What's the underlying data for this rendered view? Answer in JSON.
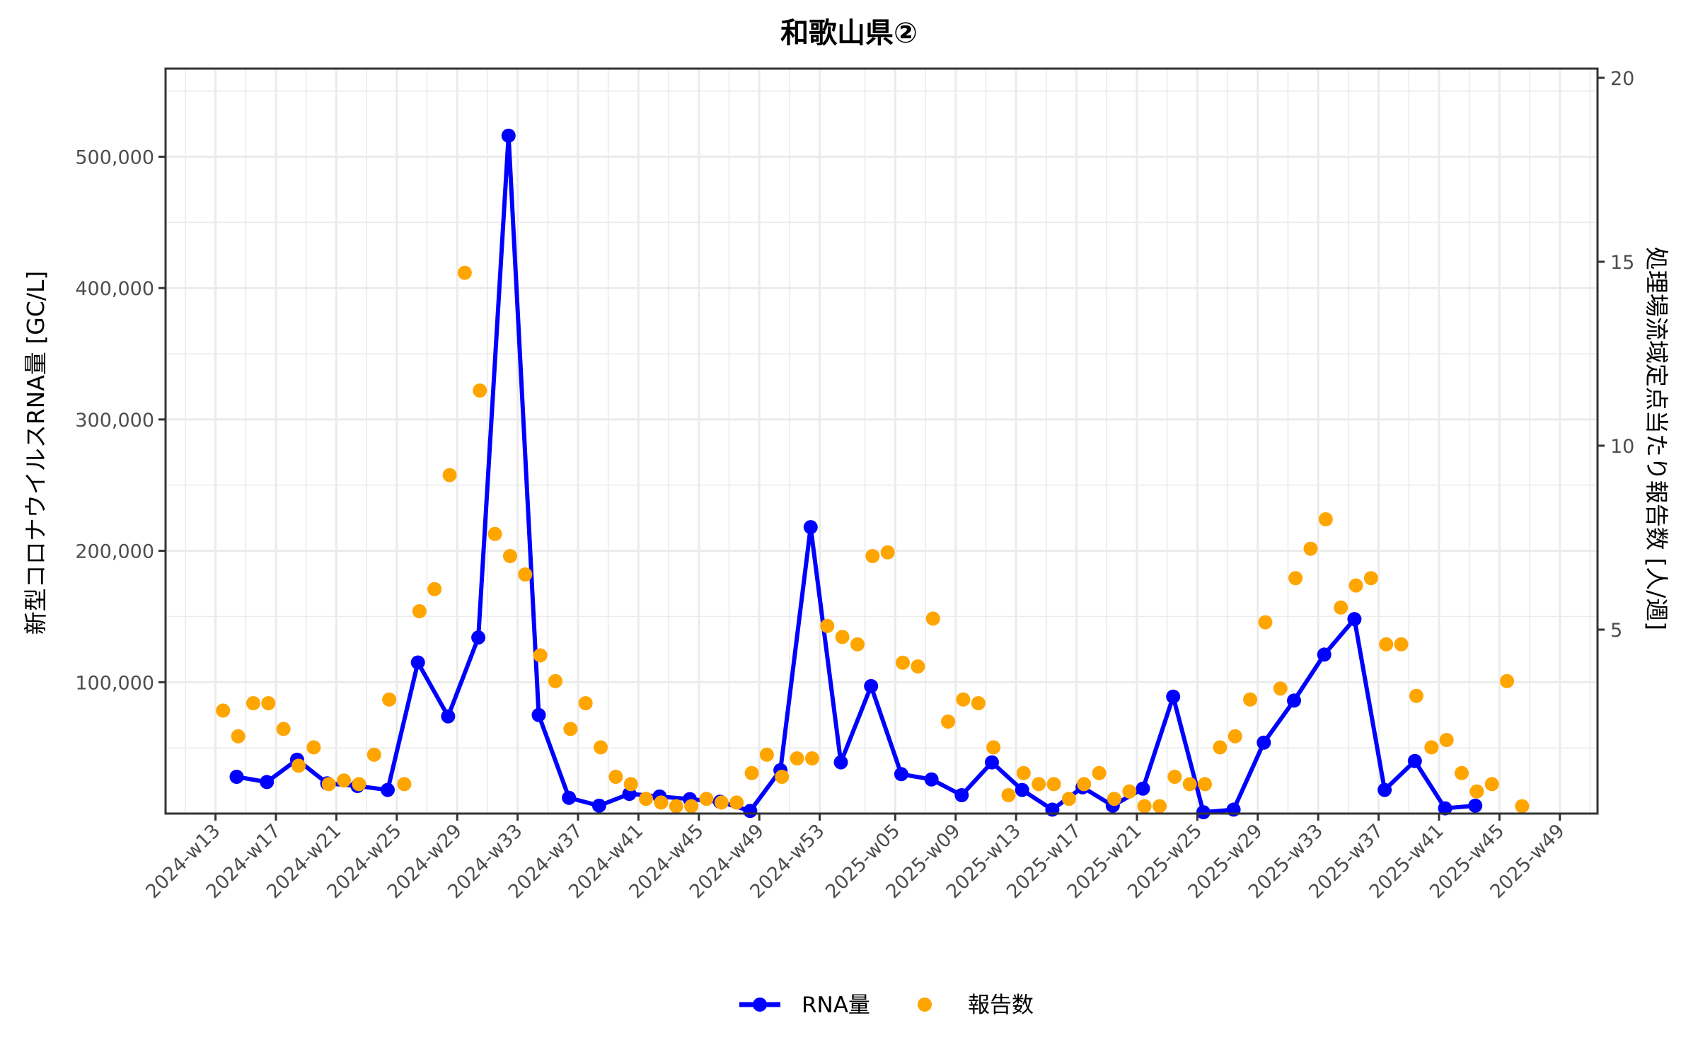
{
  "chart_data": {
    "type": "line",
    "title": "和歌山県②",
    "xlabel": "",
    "ylabel": "新型コロナウイルスRNA量 [GC/L]",
    "y2label": "処理場流域定点当たり報告数 [人/週]",
    "ylim": [
      0,
      560000
    ],
    "y2lim": [
      0,
      20
    ],
    "y_ticks": [
      100000,
      200000,
      300000,
      400000,
      500000
    ],
    "y_tick_labels": [
      "100,000",
      "200,000",
      "300,000",
      "400,000",
      "500,000"
    ],
    "y2_ticks": [
      5,
      10,
      15,
      20
    ],
    "y2_tick_labels": [
      "5",
      "10",
      "15",
      "20"
    ],
    "x_tick_labels": [
      "2024-w13",
      "2024-w17",
      "2024-w21",
      "2024-w25",
      "2024-w29",
      "2024-w33",
      "2024-w37",
      "2024-w41",
      "2024-w45",
      "2024-w49",
      "2024-w53",
      "2025-w05",
      "2025-w09",
      "2025-w13",
      "2025-w17",
      "2025-w21",
      "2025-w25",
      "2025-w29",
      "2025-w33",
      "2025-w37",
      "2025-w41",
      "2025-w45",
      "2025-w49"
    ],
    "grid": true,
    "legend_position": "bottom",
    "legend": [
      {
        "name": "RNA量",
        "type": "line+point",
        "color": "#0000ff"
      },
      {
        "name": "報告数",
        "type": "point",
        "color": "#ffa500"
      }
    ],
    "series": [
      {
        "name": "RNA量",
        "axis": "left",
        "color": "#0000ff",
        "x": [
          "2024-w14",
          "2024-w16",
          "2024-w18",
          "2024-w20",
          "2024-w22",
          "2024-w24",
          "2024-w26",
          "2024-w28",
          "2024-w30",
          "2024-w32",
          "2024-w34",
          "2024-w36",
          "2024-w38",
          "2024-w40",
          "2024-w42",
          "2024-w44",
          "2024-w46",
          "2024-w48",
          "2024-w50",
          "2024-w52",
          "2025-w01",
          "2025-w03",
          "2025-w05",
          "2025-w07",
          "2025-w09",
          "2025-w11",
          "2025-w13",
          "2025-w15",
          "2025-w17",
          "2025-w19",
          "2025-w21",
          "2025-w23",
          "2025-w25",
          "2025-w27",
          "2025-w29",
          "2025-w31",
          "2025-w33",
          "2025-w35",
          "2025-w37",
          "2025-w39",
          "2025-w41",
          "2025-w43"
        ],
        "values": [
          28000,
          24000,
          41000,
          23000,
          21000,
          18000,
          115000,
          74000,
          134000,
          516000,
          75000,
          12000,
          6000,
          15000,
          13000,
          11000,
          9000,
          2000,
          33000,
          218000,
          39000,
          97000,
          30000,
          26000,
          14000,
          39000,
          18000,
          3000,
          20000,
          6000,
          19000,
          89000,
          1000,
          3000,
          54000,
          86000,
          121000,
          148000,
          18000,
          40000,
          4000,
          6000
        ]
      },
      {
        "name": "報告数",
        "axis": "right",
        "color": "#ffa500",
        "x": [
          "2024-w14",
          "2024-w15",
          "2024-w16",
          "2024-w17",
          "2024-w18",
          "2024-w19",
          "2024-w20",
          "2024-w21",
          "2024-w22",
          "2024-w23",
          "2024-w24",
          "2024-w25",
          "2024-w26",
          "2024-w27",
          "2024-w28",
          "2024-w29",
          "2024-w30",
          "2024-w31",
          "2024-w32",
          "2024-w33",
          "2024-w34",
          "2024-w35",
          "2024-w36",
          "2024-w37",
          "2024-w38",
          "2024-w39",
          "2024-w40",
          "2024-w41",
          "2024-w42",
          "2024-w43",
          "2024-w44",
          "2024-w45",
          "2024-w46",
          "2024-w47",
          "2024-w48",
          "2024-w49",
          "2024-w50",
          "2024-w51",
          "2024-w52",
          "2024-w53",
          "2025-w01",
          "2025-w02",
          "2025-w03",
          "2025-w04",
          "2025-w05",
          "2025-w06",
          "2025-w07",
          "2025-w08",
          "2025-w09",
          "2025-w10",
          "2025-w11",
          "2025-w12",
          "2025-w13",
          "2025-w14",
          "2025-w15",
          "2025-w16",
          "2025-w17",
          "2025-w18",
          "2025-w19",
          "2025-w20",
          "2025-w21",
          "2025-w22",
          "2025-w23",
          "2025-w24",
          "2025-w25",
          "2025-w26",
          "2025-w27",
          "2025-w28",
          "2025-w29",
          "2025-w30",
          "2025-w31",
          "2025-w32",
          "2025-w33",
          "2025-w34",
          "2025-w35",
          "2025-w36",
          "2025-w37",
          "2025-w38",
          "2025-w39",
          "2025-w40",
          "2025-w41",
          "2025-w42",
          "2025-w43",
          "2025-w44",
          "2025-w45",
          "2025-w46",
          "2025-w47"
        ],
        "values": [
          2.8,
          2.1,
          3.0,
          3.0,
          2.3,
          1.3,
          1.8,
          0.8,
          0.9,
          0.8,
          1.6,
          3.1,
          0.8,
          5.5,
          6.1,
          9.2,
          14.7,
          11.5,
          7.6,
          7.0,
          6.5,
          4.3,
          3.6,
          2.3,
          3.0,
          1.8,
          1.0,
          0.8,
          0.4,
          0.3,
          0.2,
          0.2,
          0.4,
          0.3,
          0.3,
          1.1,
          1.6,
          1.0,
          1.5,
          1.5,
          5.1,
          4.8,
          4.6,
          7.0,
          7.1,
          4.1,
          4.0,
          5.3,
          2.5,
          3.1,
          3.0,
          1.8,
          0.5,
          1.1,
          0.8,
          0.8,
          0.4,
          0.8,
          1.1,
          0.4,
          0.6,
          0.2,
          0.2,
          1.0,
          0.8,
          0.8,
          1.8,
          2.1,
          3.1,
          5.2,
          3.4,
          6.4,
          7.2,
          8.0,
          5.6,
          6.2,
          6.4,
          4.6,
          4.6,
          3.2,
          1.8,
          2.0,
          1.1,
          0.6,
          0.8,
          3.6,
          0.2
        ]
      }
    ]
  },
  "legend": {
    "rna_label": "RNA量",
    "report_label": "報告数"
  }
}
